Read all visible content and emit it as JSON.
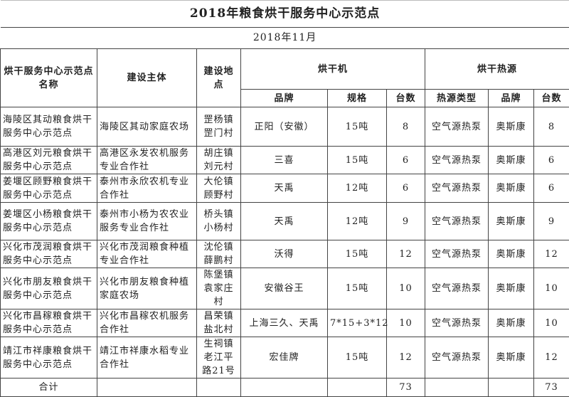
{
  "title": "2018年粮食烘干服务中心示范点",
  "date": "2018年11月",
  "headers": {
    "name": "烘干服务中心示范点名称",
    "owner": "建设主体",
    "location": "建设地点",
    "dryer": "烘干机",
    "heat": "烘干热源",
    "dryer_brand": "品牌",
    "dryer_spec": "规格",
    "dryer_count": "台数",
    "heat_type": "热源类型",
    "heat_brand": "品牌",
    "heat_count": "台数"
  },
  "rows": [
    {
      "name": "海陵区其动粮食烘干服务中心示范点",
      "owner": "海陵区其动家庭农场",
      "location": "罡杨镇罡门村",
      "brand": "正阳（安徽）",
      "spec": "15吨",
      "count": "8",
      "heat_type": "空气源热泵",
      "heat_brand": "奥斯康",
      "heat_count": "8"
    },
    {
      "name": "高港区刘元粮食烘干服务中心示范点",
      "owner": "高港区永发农机服务专业合作社",
      "location": "胡庄镇刘元村",
      "brand": "三喜",
      "spec": "15吨",
      "count": "6",
      "heat_type": "空气源热泵",
      "heat_brand": "奥斯康",
      "heat_count": "6"
    },
    {
      "name": "姜堰区顾野粮食烘干服务中心示范点",
      "owner": "泰州市永欣农机专业合作社",
      "location": "大伦镇顾野村",
      "brand": "天禹",
      "spec": "12吨",
      "count": "6",
      "heat_type": "空气源热泵",
      "heat_brand": "奥斯康",
      "heat_count": "6"
    },
    {
      "name": "姜堰区小杨粮食烘干服务中心示范点",
      "owner": "泰州市小杨为农农业服务专业合作社",
      "location": "桥头镇小杨村",
      "brand": "天禹",
      "spec": "12吨",
      "count": "9",
      "heat_type": "空气源热泵",
      "heat_brand": "奥斯康",
      "heat_count": "9"
    },
    {
      "name": "兴化市茂润粮食烘干服务中心示范点",
      "owner": "兴化市茂润粮食种植专业合作社",
      "location": "沈伦镇薛鹏村",
      "brand": "沃得",
      "spec": "15吨",
      "count": "12",
      "heat_type": "空气源热泵",
      "heat_brand": "奥斯康",
      "heat_count": "12"
    },
    {
      "name": "兴化市朋友粮食烘干服务中心示范点",
      "owner": "兴化市朋友粮食种植家庭农场",
      "location": "陈堡镇袁家庄村",
      "brand": "安徽谷王",
      "spec": "15吨",
      "count": "10",
      "heat_type": "空气源热泵",
      "heat_brand": "奥斯康",
      "heat_count": "10"
    },
    {
      "name": "兴化市昌稼粮食烘干服务中心示范点",
      "owner": "兴化市昌稼农机服务合作社",
      "location": "昌荣镇盐北村",
      "brand": "上海三久、天禹",
      "spec": "7*15+3*12",
      "count": "10",
      "heat_type": "空气源热泵",
      "heat_brand": "奥斯康",
      "heat_count": "10"
    },
    {
      "name": "靖江市祥康粮食烘干服务中心示范点",
      "owner": "靖江市祥康水稻专业合作社",
      "location": "生祠镇老江平路21号",
      "brand": "宏佳牌",
      "spec": "15吨",
      "count": "12",
      "heat_type": "空气源热泵",
      "heat_brand": "奥斯康",
      "heat_count": "12"
    }
  ],
  "total": {
    "label": "合计",
    "count": "73",
    "heat_count": "73"
  }
}
